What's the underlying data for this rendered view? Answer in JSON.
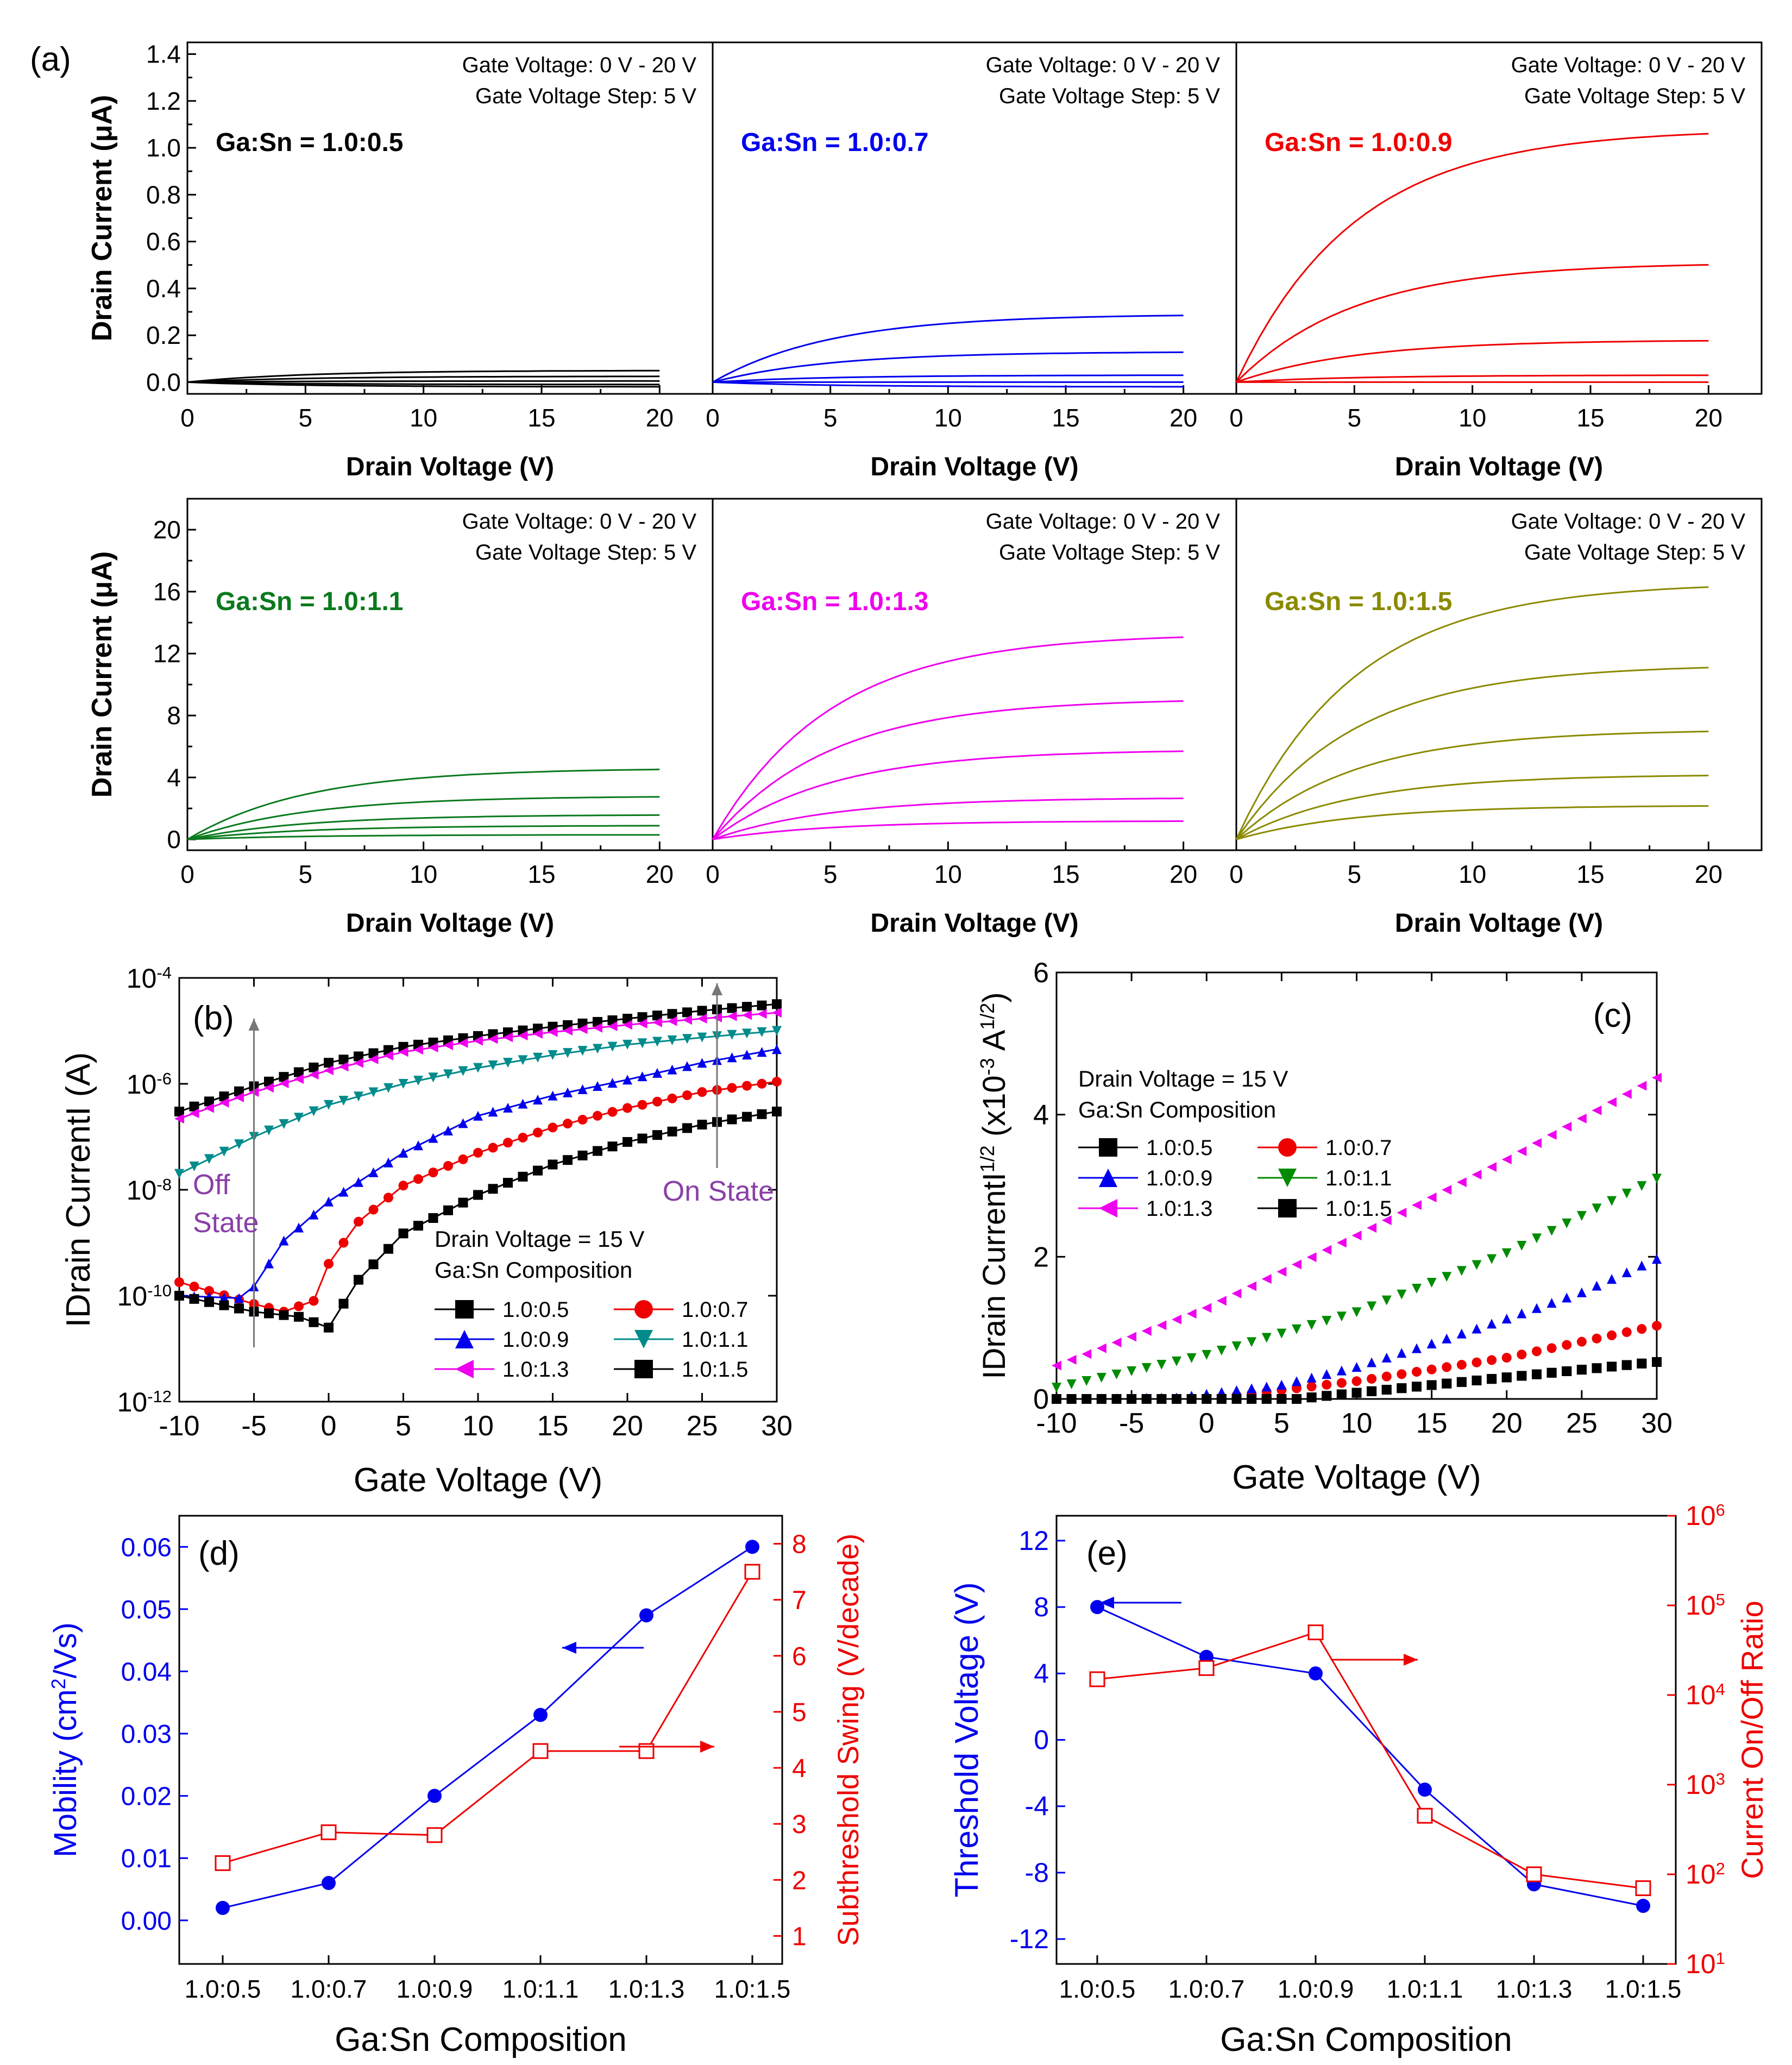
{
  "figure": {
    "labels": {
      "a": "(a)",
      "b": "(b)",
      "c": "(c)",
      "d": "(d)",
      "e": "(e)"
    }
  },
  "panel_a": {
    "ylabel_top": "Drain Current (μA)",
    "ylabel_bottom": "Drain Current (μA)",
    "xlabel": "Drain Voltage (V)",
    "gate_text_1": "Gate Voltage: 0 V  - 20 V",
    "gate_text_2": "Gate Voltage Step: 5 V"
  },
  "chart_data": [
    {
      "type": "line",
      "panel": "a1",
      "title": "Ga:Sn = 1.0:0.5",
      "color": "#000000",
      "xlabel": "Drain Voltage (V)",
      "ylabel": "Drain Current (μA)",
      "xlim": [
        0,
        20
      ],
      "ylim": [
        -0.05,
        1.45
      ],
      "xticks": [
        0,
        5,
        10,
        15,
        20
      ],
      "yticks": [
        0.0,
        0.2,
        0.4,
        0.6,
        0.8,
        1.0,
        1.2,
        1.4
      ],
      "ytick_labels": [
        "0.0",
        "0.2",
        "0.4",
        "0.6",
        "0.8",
        "1.0",
        "1.2",
        "1.4"
      ],
      "annotation": [
        "Gate Voltage: 0 V  - 20 V",
        "Gate Voltage Step: 5 V"
      ],
      "series_saturation": [
        -0.02,
        -0.01,
        0.005,
        0.025,
        0.05
      ]
    },
    {
      "type": "line",
      "panel": "a2",
      "title": "Ga:Sn = 1.0:0.7",
      "color": "#0000ee",
      "xlabel": "Drain Voltage (V)",
      "ylabel": "Drain Current (μA)",
      "xlim": [
        0,
        20
      ],
      "ylim": [
        -0.05,
        1.45
      ],
      "xticks": [
        0,
        5,
        10,
        15,
        20
      ],
      "annotation": [
        "Gate Voltage: 0 V  - 20 V",
        "Gate Voltage Step: 5 V"
      ],
      "series_saturation": [
        -0.02,
        0.0,
        0.03,
        0.13,
        0.29
      ]
    },
    {
      "type": "line",
      "panel": "a3",
      "title": "Ga:Sn = 1.0:0.9",
      "color": "#ee0000",
      "xlabel": "Drain Voltage (V)",
      "ylabel": "Drain Current (μA)",
      "xlim": [
        0,
        20
      ],
      "ylim": [
        -0.05,
        1.45
      ],
      "xticks": [
        0,
        5,
        10,
        15,
        20
      ],
      "annotation": [
        "Gate Voltage: 0 V  - 20 V",
        "Gate Voltage Step: 5 V"
      ],
      "series_saturation": [
        0.0,
        0.03,
        0.18,
        0.51,
        1.08
      ]
    },
    {
      "type": "line",
      "panel": "a4",
      "title": "Ga:Sn = 1.0:1.1",
      "color": "#0a7a1e",
      "xlabel": "Drain Voltage (V)",
      "ylabel": "Drain Current (μA)",
      "xlim": [
        0,
        20
      ],
      "ylim": [
        -0.7,
        22
      ],
      "xticks": [
        0,
        5,
        10,
        15,
        20
      ],
      "yticks": [
        0,
        4,
        8,
        12,
        16,
        20
      ],
      "ytick_labels": [
        "0",
        "4",
        "8",
        "12",
        "16",
        "20"
      ],
      "annotation": [
        "Gate Voltage: 0 V  - 20 V",
        "Gate Voltage Step: 5 V"
      ],
      "series_saturation": [
        0.3,
        0.9,
        1.6,
        2.8,
        4.6
      ]
    },
    {
      "type": "line",
      "panel": "a5",
      "title": "Ga:Sn = 1.0:1.3",
      "color": "#ee00ee",
      "xlabel": "Drain Voltage (V)",
      "ylabel": "Drain Current (μA)",
      "xlim": [
        0,
        20
      ],
      "ylim": [
        -0.7,
        22
      ],
      "xticks": [
        0,
        5,
        10,
        15,
        20
      ],
      "annotation": [
        "Gate Voltage: 0 V  - 20 V",
        "Gate Voltage Step: 5 V"
      ],
      "series_saturation": [
        1.2,
        2.7,
        5.8,
        9.1,
        13.3
      ]
    },
    {
      "type": "line",
      "panel": "a6",
      "title": "Ga:Sn = 1.0:1.5",
      "color": "#8a8a00",
      "xlabel": "Drain Voltage (V)",
      "ylabel": "Drain Current (μA)",
      "xlim": [
        0,
        20
      ],
      "ylim": [
        -0.7,
        22
      ],
      "xticks": [
        0,
        5,
        10,
        15,
        20
      ],
      "annotation": [
        "Gate Voltage: 0 V  - 20 V",
        "Gate Voltage Step: 5 V"
      ],
      "series_saturation": [
        2.2,
        4.2,
        7.1,
        11.3,
        16.6
      ]
    },
    {
      "type": "scatter",
      "panel": "b",
      "scale_y": "log",
      "xlabel": "Gate Voltage (V)",
      "ylabel": "IDrain CurrentI (A)",
      "xlim": [
        -10,
        30
      ],
      "ylim_exp": [
        -12,
        -4
      ],
      "xticks": [
        -10,
        -5,
        0,
        5,
        10,
        15,
        20,
        25,
        30
      ],
      "yticks_exp": [
        -12,
        -10,
        -8,
        -6,
        -4
      ],
      "ytick_base": "10",
      "annotations": {
        "drain": "Drain Voltage = 15 V",
        "composition": "Ga:Sn Composition",
        "off_1": "Off",
        "off_2": "State",
        "on": "On State"
      },
      "series": [
        {
          "name": "1.0:0.5",
          "marker": "square",
          "color": "#000000",
          "points": [
            [
              -10,
              3e-07
            ],
            [
              -5,
              9e-07
            ],
            [
              0,
              2.5e-06
            ],
            [
              5,
              5e-06
            ],
            [
              10,
              8e-06
            ],
            [
              15,
              1.2e-05
            ],
            [
              20,
              1.7e-05
            ],
            [
              25,
              2.4e-05
            ],
            [
              30,
              3.2e-05
            ]
          ]
        },
        {
          "name": "1.0:0.7",
          "marker": "circle",
          "color": "#ee0000",
          "points": [
            [
              -10,
              1.8e-10
            ],
            [
              -5,
              7e-11
            ],
            [
              -3,
              5e-11
            ],
            [
              -1,
              8e-11
            ],
            [
              0,
              4e-10
            ],
            [
              2,
              2.5e-09
            ],
            [
              5,
              1.2e-08
            ],
            [
              10,
              5e-08
            ],
            [
              15,
              1.5e-07
            ],
            [
              20,
              3.5e-07
            ],
            [
              25,
              7e-07
            ],
            [
              30,
              1.1e-06
            ]
          ]
        },
        {
          "name": "1.0:0.9",
          "marker": "triangle-up",
          "color": "#0000ee",
          "points": [
            [
              -10,
              1e-10
            ],
            [
              -6,
              9e-11
            ],
            [
              -5,
              1.5e-10
            ],
            [
              -3,
              1.1e-09
            ],
            [
              0,
              6e-09
            ],
            [
              5,
              5e-08
            ],
            [
              10,
              2.5e-07
            ],
            [
              15,
              6e-07
            ],
            [
              20,
              1.2e-06
            ],
            [
              25,
              2.5e-06
            ],
            [
              30,
              4.5e-06
            ]
          ]
        },
        {
          "name": "1.0:1.1",
          "marker": "triangle-down",
          "color": "#008b8b",
          "points": [
            [
              -10,
              2e-08
            ],
            [
              -5,
              1e-07
            ],
            [
              0,
              4e-07
            ],
            [
              5,
              1e-06
            ],
            [
              10,
              2e-06
            ],
            [
              15,
              3.5e-06
            ],
            [
              20,
              5.5e-06
            ],
            [
              25,
              7.5e-06
            ],
            [
              30,
              1e-05
            ]
          ]
        },
        {
          "name": "1.0:1.3",
          "marker": "triangle-left",
          "color": "#ee00ee",
          "points": [
            [
              -10,
              2.2e-07
            ],
            [
              -5,
              7e-07
            ],
            [
              0,
              1.8e-06
            ],
            [
              5,
              4e-06
            ],
            [
              10,
              6.5e-06
            ],
            [
              15,
              9.5e-06
            ],
            [
              20,
              1.3e-05
            ],
            [
              25,
              1.7e-05
            ],
            [
              30,
              2.2e-05
            ]
          ]
        },
        {
          "name": "1.0:1.5",
          "marker": "square",
          "color": "#000000",
          "points": [
            [
              -10,
              1e-10
            ],
            [
              -5,
              5e-11
            ],
            [
              -2,
              4e-11
            ],
            [
              0,
              2.5e-11
            ],
            [
              2,
              2e-10
            ],
            [
              5,
              1.5e-09
            ],
            [
              10,
              8e-09
            ],
            [
              15,
              3e-08
            ],
            [
              20,
              8e-08
            ],
            [
              25,
              1.7e-07
            ],
            [
              30,
              3e-07
            ]
          ]
        }
      ]
    },
    {
      "type": "scatter",
      "panel": "c",
      "xlabel": "Gate Voltage (V)",
      "ylabel": "IDrain CurrentI",
      "ylabel_sup1": "1/2",
      "ylabel_mid": " (x10",
      "ylabel_sup2": "-3",
      "ylabel_tail": " A",
      "ylabel_sup3": "1/2",
      "ylabel_close": ")",
      "xlim": [
        -10,
        30
      ],
      "ylim": [
        0,
        6
      ],
      "xticks": [
        -10,
        -5,
        0,
        5,
        10,
        15,
        20,
        25,
        30
      ],
      "yticks": [
        0,
        2,
        4,
        6
      ],
      "annotations": {
        "drain": "Drain Voltage = 15 V",
        "composition": "Ga:Sn Composition"
      },
      "series": [
        {
          "name": "1.0:0.5",
          "marker": "square",
          "color": "#000000",
          "points": [
            [
              -10,
              0.0
            ],
            [
              6,
              0.0
            ],
            [
              30,
              0.52
            ]
          ]
        },
        {
          "name": "1.0:0.7",
          "marker": "circle",
          "color": "#ee0000",
          "points": [
            [
              -10,
              0.0
            ],
            [
              0,
              0.0
            ],
            [
              10,
              0.25
            ],
            [
              20,
              0.58
            ],
            [
              30,
              1.03
            ]
          ]
        },
        {
          "name": "1.0:0.9",
          "marker": "triangle-up",
          "color": "#0000ee",
          "points": [
            [
              -10,
              0.0
            ],
            [
              -2,
              0.02
            ],
            [
              5,
              0.2
            ],
            [
              10,
              0.45
            ],
            [
              15,
              0.78
            ],
            [
              20,
              1.13
            ],
            [
              25,
              1.5
            ],
            [
              30,
              1.97
            ]
          ]
        },
        {
          "name": "1.0:1.1",
          "marker": "triangle-down",
          "color": "#008b00",
          "points": [
            [
              -10,
              0.16
            ],
            [
              0,
              0.62
            ],
            [
              10,
              1.22
            ],
            [
              20,
              2.05
            ],
            [
              30,
              3.1
            ]
          ]
        },
        {
          "name": "1.0:1.3",
          "marker": "triangle-left",
          "color": "#ee00ee",
          "points": [
            [
              -10,
              0.47
            ],
            [
              0,
              1.28
            ],
            [
              10,
              2.3
            ],
            [
              20,
              3.37
            ],
            [
              30,
              4.52
            ]
          ]
        },
        {
          "name": "1.0:1.5",
          "marker": "square",
          "color": "#000000",
          "points": [
            [
              -10,
              0.0
            ],
            [
              6,
              0.0
            ],
            [
              30,
              0.52
            ]
          ]
        }
      ]
    },
    {
      "type": "line",
      "panel": "d",
      "categories": [
        "1.0:0.5",
        "1.0:0.7",
        "1.0:0.9",
        "1.0:1.1",
        "1.0:1.3",
        "1.0:1.5"
      ],
      "xlabel": "Ga:Sn Composition",
      "ylabel_left_pre": "Mobility (cm",
      "ylabel_left_sup": "2",
      "ylabel_left_post": "/Vs)",
      "ylabel_right": "Subthreshold Swing (V/decade)",
      "ylim_left": [
        -0.007,
        0.065
      ],
      "yticks_left": [
        0.0,
        0.01,
        0.02,
        0.03,
        0.04,
        0.05,
        0.06
      ],
      "ytick_labels_left": [
        "0.00",
        "0.01",
        "0.02",
        "0.03",
        "0.04",
        "0.05",
        "0.06"
      ],
      "ylim_right": [
        0.5,
        8.5
      ],
      "yticks_right": [
        1,
        2,
        3,
        4,
        5,
        6,
        7,
        8
      ],
      "series": [
        {
          "name": "Mobility",
          "axis": "left",
          "color": "#0000ee",
          "marker": "circle-filled",
          "values": [
            0.002,
            0.006,
            0.02,
            0.033,
            0.049,
            0.06
          ]
        },
        {
          "name": "Subthreshold Swing",
          "axis": "right",
          "color": "#ee0000",
          "marker": "square-open",
          "values": [
            2.3,
            2.85,
            2.8,
            4.3,
            4.3,
            7.5
          ]
        }
      ]
    },
    {
      "type": "line",
      "panel": "e",
      "categories": [
        "1.0:0.5",
        "1.0:0.7",
        "1.0:0.9",
        "1.0:1.1",
        "1.0:1.3",
        "1.0:1.5"
      ],
      "xlabel": "Ga:Sn Composition",
      "ylabel_left": "Threshold Voltage (V)",
      "ylabel_right": "Current On/Off Ratio",
      "ylim_left": [
        -13.5,
        13.5
      ],
      "yticks_left": [
        -12,
        -8,
        -4,
        0,
        4,
        8,
        12
      ],
      "ylim_right_exp": [
        1,
        6
      ],
      "yticks_right_exp": [
        1,
        2,
        3,
        4,
        5,
        6
      ],
      "ytick_base": "10",
      "series": [
        {
          "name": "Threshold Voltage",
          "axis": "left",
          "color": "#0000ee",
          "marker": "circle-filled",
          "values": [
            8.0,
            5.0,
            4.0,
            -3.0,
            -8.7,
            -10.0
          ]
        },
        {
          "name": "Current On/Off Ratio",
          "axis": "right",
          "color": "#ee0000",
          "marker": "square-open",
          "values": [
            15000,
            20000,
            50000,
            450,
            100,
            70
          ]
        }
      ]
    }
  ]
}
